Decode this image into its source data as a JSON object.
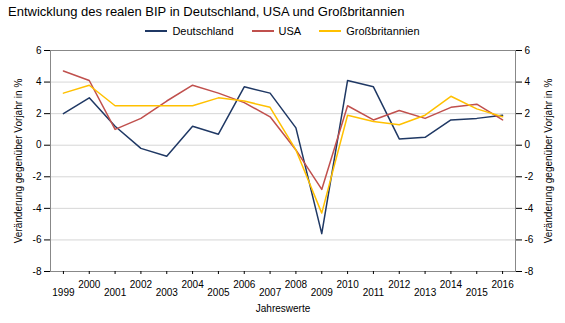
{
  "chart_data": {
    "type": "line",
    "title": "Entwicklung des realen BIP in Deutschland, USA und Großbritannien",
    "xlabel": "Jahreswerte",
    "ylabel": "Veränderung gegenüber Vorjahr in %",
    "y2label": "Veränderung gegenüber Vorjahr in %",
    "x": [
      1999,
      2000,
      2001,
      2002,
      2003,
      2004,
      2005,
      2006,
      2007,
      2008,
      2009,
      2010,
      2011,
      2012,
      2013,
      2014,
      2015,
      2016
    ],
    "series": [
      {
        "name": "Deutschland",
        "color": "#1f3864",
        "values": [
          2.0,
          3.0,
          1.2,
          -0.2,
          -0.7,
          1.2,
          0.7,
          3.7,
          3.3,
          1.1,
          -5.6,
          4.1,
          3.7,
          0.4,
          0.5,
          1.6,
          1.7,
          1.9
        ]
      },
      {
        "name": "USA",
        "color": "#c0504d",
        "values": [
          4.7,
          4.1,
          1.0,
          1.7,
          2.8,
          3.8,
          3.3,
          2.7,
          1.8,
          -0.3,
          -2.8,
          2.5,
          1.6,
          2.2,
          1.7,
          2.4,
          2.6,
          1.6
        ]
      },
      {
        "name": "Großbritannien",
        "color": "#ffc000",
        "values": [
          3.3,
          3.8,
          2.5,
          2.5,
          2.5,
          2.5,
          3.0,
          2.8,
          2.4,
          -0.3,
          -4.3,
          1.9,
          1.5,
          1.3,
          1.9,
          3.1,
          2.3,
          1.8
        ]
      }
    ],
    "xlim": [
      1998.5,
      2016.5
    ],
    "xticks": [
      1999,
      2000,
      2001,
      2002,
      2003,
      2004,
      2005,
      2006,
      2007,
      2008,
      2009,
      2010,
      2011,
      2012,
      2013,
      2014,
      2015,
      2016
    ],
    "ylim": [
      -8,
      6
    ],
    "yticks": [
      -8,
      -6,
      -4,
      -2,
      0,
      2,
      4,
      6
    ],
    "y2lim": [
      -8,
      6
    ],
    "y2ticks": [
      -8,
      -6,
      -4,
      -2,
      0,
      2,
      4,
      6
    ],
    "grid": true,
    "legend": "top"
  }
}
